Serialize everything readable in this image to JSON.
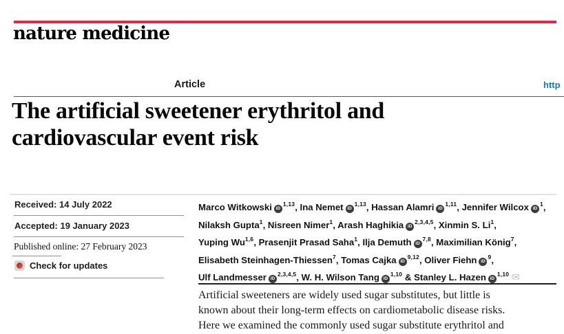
{
  "masthead": {
    "journal": "nature medicine"
  },
  "header": {
    "article_label": "Article",
    "doi_link_text": "http"
  },
  "title": {
    "line1": "The artificial sweetener erythritol and",
    "line2": "cardiovascular event risk"
  },
  "dates": {
    "received": "Received: 14 July 2022",
    "accepted": "Accepted: 19 January 2023",
    "published": "Published online: 27 February 2023",
    "check_updates": "Check for updates"
  },
  "icons": {
    "orcid_text": "iD",
    "email_glyph": "✉"
  },
  "authors": {
    "lines": [
      [
        {
          "t": "Marco Witkowski"
        },
        {
          "i": "orcid"
        },
        {
          "s": "1,13"
        },
        {
          "t": ", Ina Nemet"
        },
        {
          "i": "orcid"
        },
        {
          "s": "1,13"
        },
        {
          "t": ", Hassan Alamri"
        },
        {
          "i": "orcid"
        },
        {
          "s": "1,11"
        },
        {
          "t": ", Jennifer Wilcox"
        },
        {
          "i": "orcid"
        },
        {
          "s": "1"
        },
        {
          "t": ","
        }
      ],
      [
        {
          "t": "Nilaksh Gupta"
        },
        {
          "s": "1"
        },
        {
          "t": ", Nisreen Nimer"
        },
        {
          "s": "1"
        },
        {
          "t": ", Arash Haghikia"
        },
        {
          "i": "orcid"
        },
        {
          "s": "2,3,4,5"
        },
        {
          "t": ", Xinmin S. Li"
        },
        {
          "s": "1"
        },
        {
          "t": ","
        }
      ],
      [
        {
          "t": "Yuping Wu"
        },
        {
          "s": "1,6"
        },
        {
          "t": ", Prasenjit Prasad Saha"
        },
        {
          "s": "1"
        },
        {
          "t": ", Ilja Demuth"
        },
        {
          "i": "orcid"
        },
        {
          "s": "7,8"
        },
        {
          "t": ", Maximilian König"
        },
        {
          "s": "7"
        },
        {
          "t": ","
        }
      ],
      [
        {
          "t": "Elisabeth Steinhagen-Thiessen"
        },
        {
          "s": "7"
        },
        {
          "t": ", Tomas Cajka"
        },
        {
          "i": "orcid"
        },
        {
          "s": "9,12"
        },
        {
          "t": ", Oliver Fiehn"
        },
        {
          "i": "orcid"
        },
        {
          "s": "9"
        },
        {
          "t": ","
        }
      ],
      [
        {
          "t": "Ulf Landmesser"
        },
        {
          "i": "orcid"
        },
        {
          "s": "2,3,4,5"
        },
        {
          "t": ", W. H. Wilson Tang"
        },
        {
          "i": "orcid"
        },
        {
          "s": "1,10"
        },
        {
          "t": " & Stanley L. Hazen"
        },
        {
          "i": "orcid"
        },
        {
          "s": "1,10"
        },
        {
          "i": "envelope"
        }
      ]
    ]
  },
  "abstract": {
    "lines": [
      "Artificial sweeteners are widely used sugar substitutes, but little is",
      "known about their long-term effects on cardiometabolic disease risks.",
      "Here we examined the commonly used sugar substitute erythritol and"
    ]
  },
  "colors": {
    "brand_red": "#dc2b44",
    "link_blue": "#0e7cbd"
  }
}
